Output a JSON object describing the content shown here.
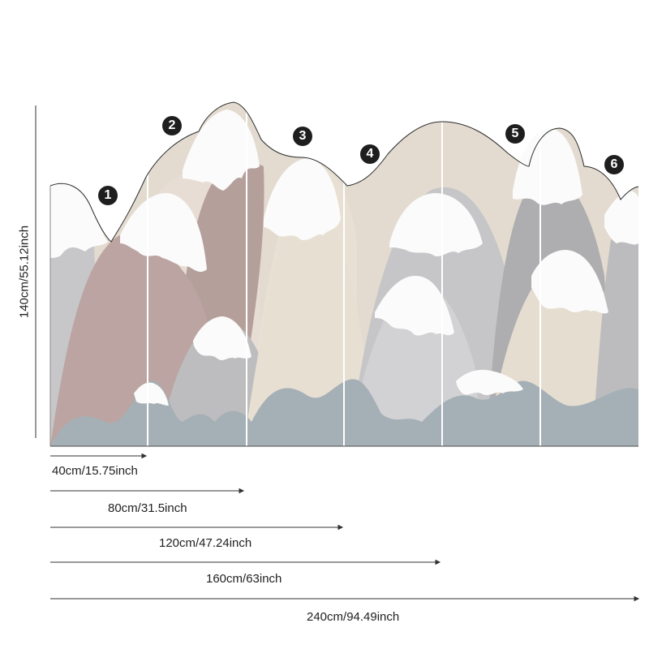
{
  "panels": [
    {
      "number": "1"
    },
    {
      "number": "2"
    },
    {
      "number": "3"
    },
    {
      "number": "4"
    },
    {
      "number": "5"
    },
    {
      "number": "6"
    }
  ],
  "height_dimension": "140cm/55.12inch",
  "width_dimensions": [
    "40cm/15.75inch",
    "80cm/31.5inch",
    "120cm/47.24inch",
    "160cm/63inch",
    "240cm/94.49inch"
  ],
  "colors": {
    "snow": "#fbfbfb",
    "light_gray": "#cfd0d1",
    "mid_gray": "#b6b7b9",
    "dusty_pink": "#b8a3a0",
    "beige": "#e3dbd0",
    "slate_blue": "#a4afb5"
  }
}
